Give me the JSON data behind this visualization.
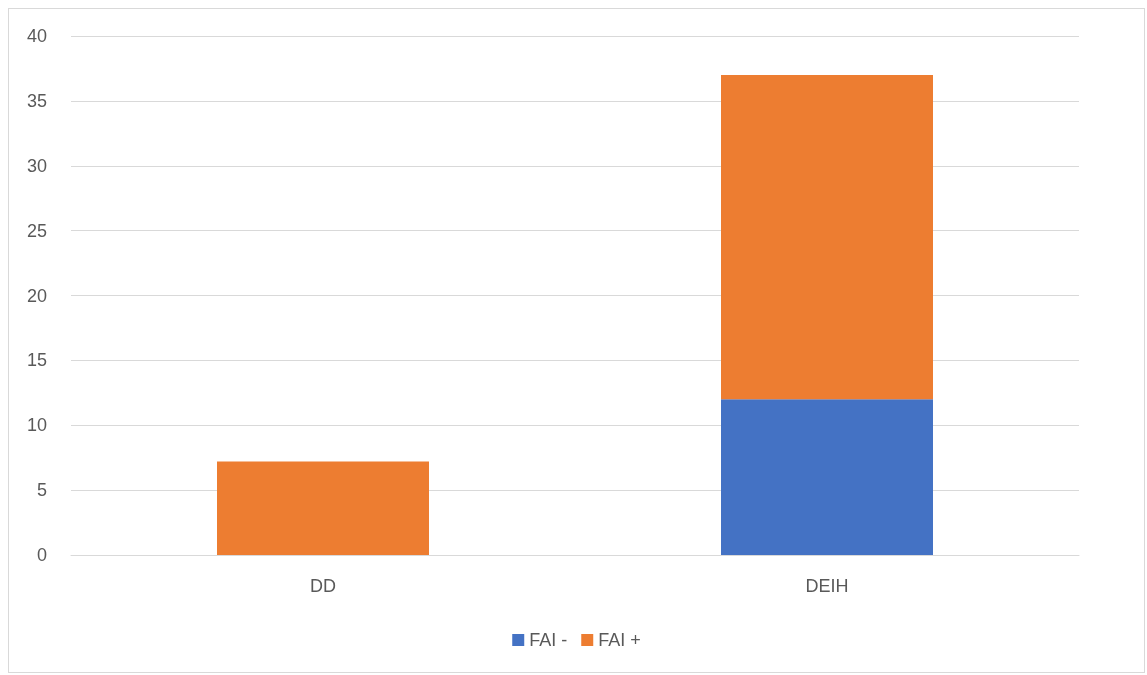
{
  "chart_data": {
    "type": "bar",
    "stacked": true,
    "categories": [
      "DD",
      "DEIH"
    ],
    "series": [
      {
        "name": "FAI -",
        "color": "#4472c4",
        "values": [
          0,
          12
        ]
      },
      {
        "name": "FAI +",
        "color": "#ed7d31",
        "values": [
          7.2,
          25
        ]
      }
    ],
    "ylim": [
      0,
      40
    ],
    "yticks": [
      0,
      5,
      10,
      15,
      20,
      25,
      30,
      35,
      40
    ],
    "grid": "y",
    "legend": "bottom"
  }
}
